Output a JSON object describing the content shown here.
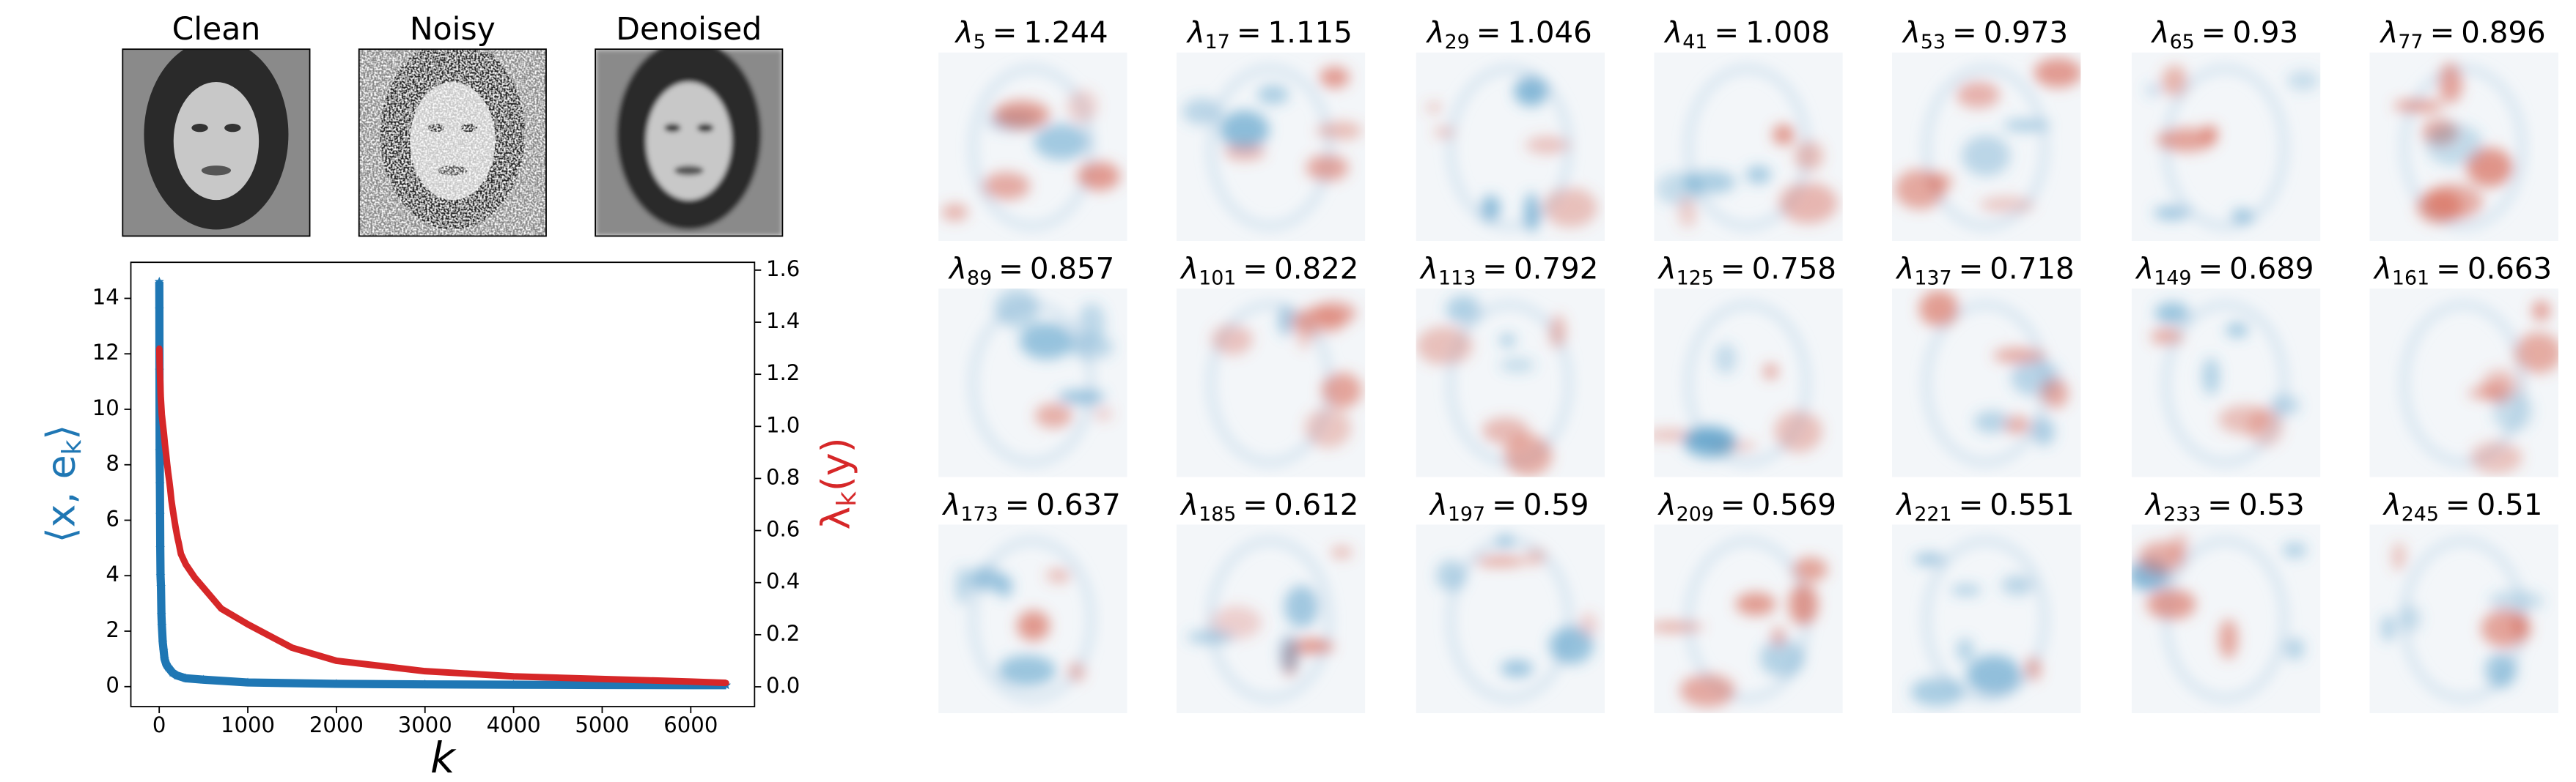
{
  "images": {
    "titles": [
      "Clean",
      "Noisy",
      "Denoised"
    ]
  },
  "chart_data": {
    "type": "scatter",
    "x_label": "k",
    "y_label": [
      "⟨x, e",
      "k",
      "⟩"
    ],
    "y2_label": [
      "λ",
      "k",
      "(y)"
    ],
    "xlim": [
      -320,
      6720
    ],
    "xticks": [
      0,
      1000,
      2000,
      3000,
      4000,
      5000,
      6000
    ],
    "ylim": [
      -0.72,
      15.3
    ],
    "yticks": [
      0,
      2,
      4,
      6,
      8,
      10,
      12,
      14
    ],
    "y2lim": [
      -0.076,
      1.63
    ],
    "y2ticks": [
      {
        "value": 0,
        "label": "0.0"
      },
      0.2,
      0.4,
      0.6,
      0.8,
      {
        "value": 1,
        "label": "1.0"
      },
      1.2,
      1.4,
      1.6
    ],
    "series": [
      {
        "color": "#1f77b4",
        "marker": "star",
        "x": [
          1,
          2,
          3,
          5,
          8,
          10,
          12,
          15,
          20,
          25,
          30,
          40,
          50,
          60,
          80,
          100,
          150,
          200,
          300,
          500,
          1000,
          2000,
          3000,
          4000,
          5000,
          6000,
          6400
        ],
        "values": [
          14.6,
          13.6,
          11.4,
          8.5,
          7.3,
          6.2,
          5.0,
          4.0,
          3.6,
          2.6,
          2.2,
          1.6,
          1.3,
          1.0,
          0.8,
          0.7,
          0.5,
          0.4,
          0.3,
          0.25,
          0.15,
          0.1,
          0.08,
          0.07,
          0.06,
          0.05,
          0.05
        ]
      },
      {
        "color": "#d62728",
        "marker": "dot",
        "axis": "y2",
        "x": [
          1,
          5,
          17,
          29,
          41,
          53,
          65,
          77,
          89,
          101,
          113,
          125,
          137,
          149,
          161,
          173,
          185,
          197,
          209,
          221,
          233,
          245,
          300,
          400,
          500,
          700,
          1000,
          1500,
          2000,
          3000,
          4000,
          5000,
          6000,
          6400
        ],
        "values": [
          1.3,
          1.244,
          1.115,
          1.046,
          1.008,
          0.973,
          0.93,
          0.896,
          0.857,
          0.822,
          0.792,
          0.758,
          0.718,
          0.689,
          0.663,
          0.637,
          0.612,
          0.59,
          0.569,
          0.551,
          0.53,
          0.51,
          0.47,
          0.42,
          0.38,
          0.3,
          0.24,
          0.15,
          0.1,
          0.06,
          0.04,
          0.03,
          0.02,
          0.015
        ]
      }
    ]
  },
  "eigen_panels": {
    "symbol": "λ",
    "equals": "=",
    "panels": [
      {
        "k": 5,
        "value": 1.244
      },
      {
        "k": 17,
        "value": 1.115
      },
      {
        "k": 29,
        "value": 1.046
      },
      {
        "k": 41,
        "value": 1.008
      },
      {
        "k": 53,
        "value": 0.973
      },
      {
        "k": 65,
        "value": 0.93
      },
      {
        "k": 77,
        "value": 0.896
      },
      {
        "k": 89,
        "value": 0.857
      },
      {
        "k": 101,
        "value": 0.822
      },
      {
        "k": 113,
        "value": 0.792
      },
      {
        "k": 125,
        "value": 0.758
      },
      {
        "k": 137,
        "value": 0.718
      },
      {
        "k": 149,
        "value": 0.689
      },
      {
        "k": 161,
        "value": 0.663
      },
      {
        "k": 173,
        "value": 0.637
      },
      {
        "k": 185,
        "value": 0.612
      },
      {
        "k": 197,
        "value": 0.59
      },
      {
        "k": 209,
        "value": 0.569
      },
      {
        "k": 221,
        "value": 0.551
      },
      {
        "k": 233,
        "value": 0.53
      },
      {
        "k": 245,
        "value": 0.51
      }
    ]
  }
}
